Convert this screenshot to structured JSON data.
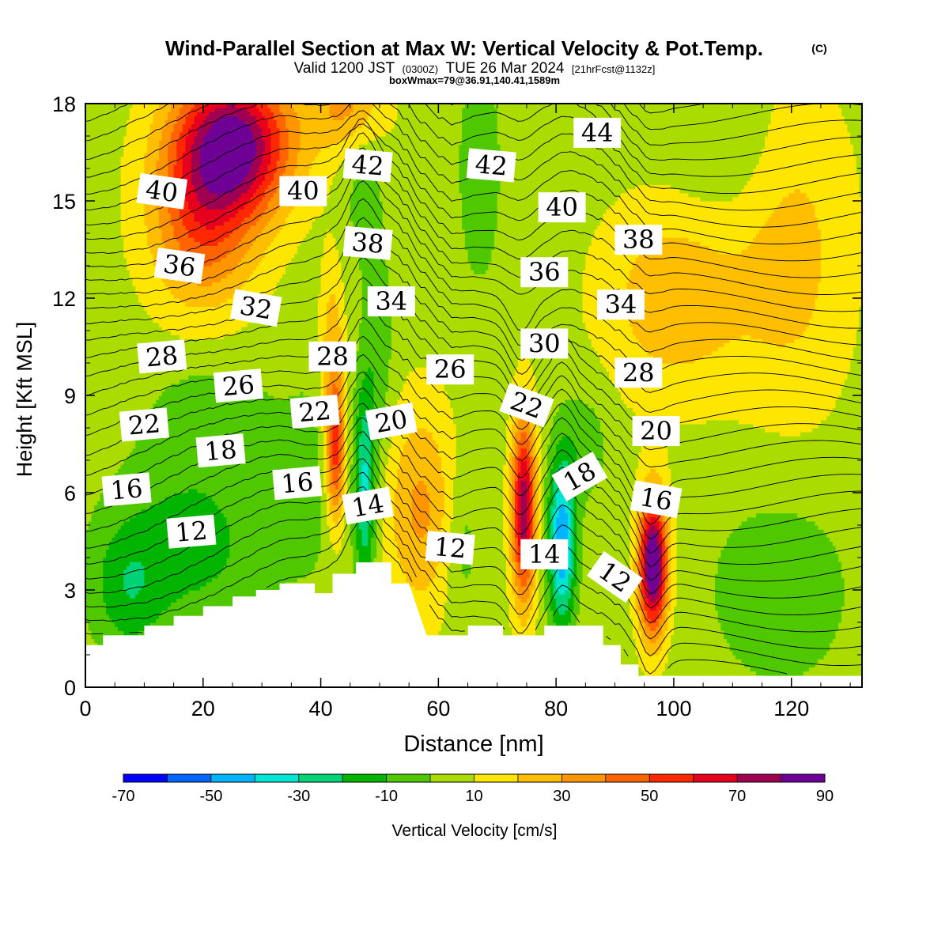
{
  "header": {
    "title": "Wind-Parallel Section at Max W: Vertical Velocity & Pot.Temp.",
    "title_mark": "(C)",
    "valid_prefix": "Valid 1200 JST",
    "valid_utc": "(0300Z)",
    "valid_date": "TUE 26 Mar 2024",
    "valid_fcst": "[21hrFcst@1132z]",
    "box_info": "boxWmax=79@36.91,140.41,1589m"
  },
  "chart_data": {
    "type": "heatmap",
    "xlabel": "Distance [nm]",
    "ylabel": "Height [Kft MSL]",
    "xlim": [
      0,
      132
    ],
    "ylim": [
      0,
      18
    ],
    "x_ticks": [
      0,
      20,
      40,
      60,
      80,
      100,
      120
    ],
    "y_ticks": [
      0,
      3,
      6,
      9,
      12,
      15,
      18
    ],
    "x_tick_labels": [
      "0",
      "20",
      "40",
      "60",
      "80",
      "100",
      "120"
    ],
    "y_tick_labels": [
      "0",
      "3",
      "6",
      "9",
      "12",
      "15",
      "18"
    ],
    "colorbar": {
      "label": "Vertical Velocity [cm/s]",
      "min": -70,
      "max": 90,
      "step": 10,
      "tick_labels": [
        "-70",
        "-50",
        "-30",
        "-10",
        "10",
        "30",
        "50",
        "70",
        "90"
      ],
      "colors": [
        "#0000ff",
        "#0064ff",
        "#00b4ff",
        "#00e6d2",
        "#00d278",
        "#00b400",
        "#50c800",
        "#aadc00",
        "#ffe600",
        "#ffbe00",
        "#ff9600",
        "#ff6400",
        "#ff2800",
        "#e6001e",
        "#a00050",
        "#6e0096"
      ]
    },
    "terrain": [
      [
        0,
        1.3
      ],
      [
        3,
        1.3
      ],
      [
        3,
        1.6
      ],
      [
        10,
        1.6
      ],
      [
        10,
        1.9
      ],
      [
        15,
        1.9
      ],
      [
        15,
        2.2
      ],
      [
        20,
        2.2
      ],
      [
        20,
        2.5
      ],
      [
        25,
        2.5
      ],
      [
        25,
        2.8
      ],
      [
        29,
        2.8
      ],
      [
        29,
        3.0
      ],
      [
        33,
        3.0
      ],
      [
        33,
        3.2
      ],
      [
        39,
        3.2
      ],
      [
        39,
        2.9
      ],
      [
        42,
        2.9
      ],
      [
        42,
        3.5
      ],
      [
        46,
        3.5
      ],
      [
        46,
        3.85
      ],
      [
        52,
        3.85
      ],
      [
        52,
        3.2
      ],
      [
        55,
        3.2
      ],
      [
        58,
        1.6
      ],
      [
        65,
        1.6
      ],
      [
        65,
        1.9
      ],
      [
        71,
        1.9
      ],
      [
        71,
        1.6
      ],
      [
        78,
        1.6
      ],
      [
        78,
        1.9
      ],
      [
        88,
        1.9
      ],
      [
        88,
        1.3
      ],
      [
        91,
        1.3
      ],
      [
        91,
        0.7
      ],
      [
        94,
        0.7
      ],
      [
        94,
        0.35
      ],
      [
        132,
        0.35
      ]
    ],
    "velocity_features": [
      {
        "x": 25,
        "y": 16.8,
        "w": 80,
        "sx": 10,
        "sy": 2.2
      },
      {
        "x": 20,
        "y": 14.2,
        "w": 38,
        "sx": 9,
        "sy": 2.5
      },
      {
        "x": 45,
        "y": 18.0,
        "w": 30,
        "sx": 6,
        "sy": 1.5
      },
      {
        "x": 18,
        "y": 4.5,
        "w": -20,
        "sx": 14,
        "sy": 3.0
      },
      {
        "x": 22,
        "y": 8.5,
        "w": -12,
        "sx": 10,
        "sy": 1.5
      },
      {
        "x": 7,
        "y": 3.0,
        "w": -18,
        "sx": 6,
        "sy": 2.0
      },
      {
        "x": 38,
        "y": 6.5,
        "w": -10,
        "sx": 5,
        "sy": 3.0
      },
      {
        "x": 42.5,
        "y": 7.2,
        "w": 45,
        "sx": 1.6,
        "sy": 2.2
      },
      {
        "x": 42,
        "y": 10.2,
        "w": 22,
        "sx": 2.0,
        "sy": 3.0
      },
      {
        "x": 47.5,
        "y": 6.2,
        "w": -38,
        "sx": 1.8,
        "sy": 3.2
      },
      {
        "x": 50,
        "y": 10.0,
        "w": -12,
        "sx": 2.5,
        "sy": 3.5
      },
      {
        "x": 47,
        "y": 16.0,
        "w": -10,
        "sx": 4,
        "sy": 3.5
      },
      {
        "x": 57,
        "y": 5.5,
        "w": 26,
        "sx": 6,
        "sy": 3.2
      },
      {
        "x": 64,
        "y": 4.5,
        "w": -12,
        "sx": 3,
        "sy": 2.5
      },
      {
        "x": 67,
        "y": 16.0,
        "w": -12,
        "sx": 4,
        "sy": 4.0
      },
      {
        "x": 74.5,
        "y": 5.5,
        "w": 72,
        "sx": 2.0,
        "sy": 2.8
      },
      {
        "x": 81,
        "y": 4.5,
        "w": -55,
        "sx": 2.3,
        "sy": 2.6
      },
      {
        "x": 85,
        "y": 7.5,
        "w": -12,
        "sx": 4,
        "sy": 1.8
      },
      {
        "x": 96.5,
        "y": 3.8,
        "w": 90,
        "sx": 2.4,
        "sy": 2.1
      },
      {
        "x": 100,
        "y": 12.0,
        "w": 22,
        "sx": 12,
        "sy": 3.0
      },
      {
        "x": 120,
        "y": 13.5,
        "w": 18,
        "sx": 10,
        "sy": 5.0
      },
      {
        "x": 118,
        "y": 3.0,
        "w": -14,
        "sx": 12,
        "sy": 3.0
      },
      {
        "x": 110,
        "y": 16.5,
        "w": -8,
        "sx": 10,
        "sy": 2.5
      }
    ],
    "velocity_background": 6,
    "theta_contours": {
      "start": 9,
      "end": 45,
      "step": 1
    },
    "contour_labels": [
      {
        "text": "40",
        "x": 13,
        "y": 15.3,
        "rot": 8
      },
      {
        "text": "36",
        "x": 16,
        "y": 13.0,
        "rot": 8
      },
      {
        "text": "32",
        "x": 29,
        "y": 11.7,
        "rot": 10
      },
      {
        "text": "28",
        "x": 13,
        "y": 10.2,
        "rot": -5
      },
      {
        "text": "26",
        "x": 26,
        "y": 9.3,
        "rot": -5
      },
      {
        "text": "22",
        "x": 10,
        "y": 8.1,
        "rot": -5
      },
      {
        "text": "18",
        "x": 23,
        "y": 7.3,
        "rot": -5
      },
      {
        "text": "16",
        "x": 7,
        "y": 6.1,
        "rot": -5
      },
      {
        "text": "12",
        "x": 18,
        "y": 4.8,
        "rot": -5
      },
      {
        "text": "40",
        "x": 37,
        "y": 15.3,
        "rot": 0
      },
      {
        "text": "42",
        "x": 48,
        "y": 16.1,
        "rot": 5
      },
      {
        "text": "38",
        "x": 48,
        "y": 13.7,
        "rot": 5
      },
      {
        "text": "34",
        "x": 52,
        "y": 11.9,
        "rot": 0
      },
      {
        "text": "28",
        "x": 42,
        "y": 10.2,
        "rot": 0
      },
      {
        "text": "22",
        "x": 39,
        "y": 8.5,
        "rot": -5
      },
      {
        "text": "20",
        "x": 52,
        "y": 8.2,
        "rot": -10
      },
      {
        "text": "16",
        "x": 36,
        "y": 6.3,
        "rot": -5
      },
      {
        "text": "14",
        "x": 48,
        "y": 5.6,
        "rot": -10
      },
      {
        "text": "26",
        "x": 62,
        "y": 9.8,
        "rot": 0
      },
      {
        "text": "12",
        "x": 62,
        "y": 4.3,
        "rot": 5
      },
      {
        "text": "42",
        "x": 69,
        "y": 16.1,
        "rot": 5
      },
      {
        "text": "36",
        "x": 78,
        "y": 12.8,
        "rot": 0
      },
      {
        "text": "30",
        "x": 78,
        "y": 10.6,
        "rot": 0
      },
      {
        "text": "22",
        "x": 75,
        "y": 8.7,
        "rot": 20
      },
      {
        "text": "14",
        "x": 78,
        "y": 4.1,
        "rot": 0
      },
      {
        "text": "18",
        "x": 84,
        "y": 6.5,
        "rot": -30
      },
      {
        "text": "44",
        "x": 87,
        "y": 17.1,
        "rot": 0
      },
      {
        "text": "40",
        "x": 81,
        "y": 14.8,
        "rot": 0
      },
      {
        "text": "38",
        "x": 94,
        "y": 13.8,
        "rot": 0
      },
      {
        "text": "34",
        "x": 91,
        "y": 11.8,
        "rot": 0
      },
      {
        "text": "28",
        "x": 94,
        "y": 9.7,
        "rot": 0
      },
      {
        "text": "20",
        "x": 97,
        "y": 7.9,
        "rot": 0
      },
      {
        "text": "16",
        "x": 97,
        "y": 5.8,
        "rot": 10
      },
      {
        "text": "12",
        "x": 90,
        "y": 3.4,
        "rot": 35
      }
    ]
  }
}
